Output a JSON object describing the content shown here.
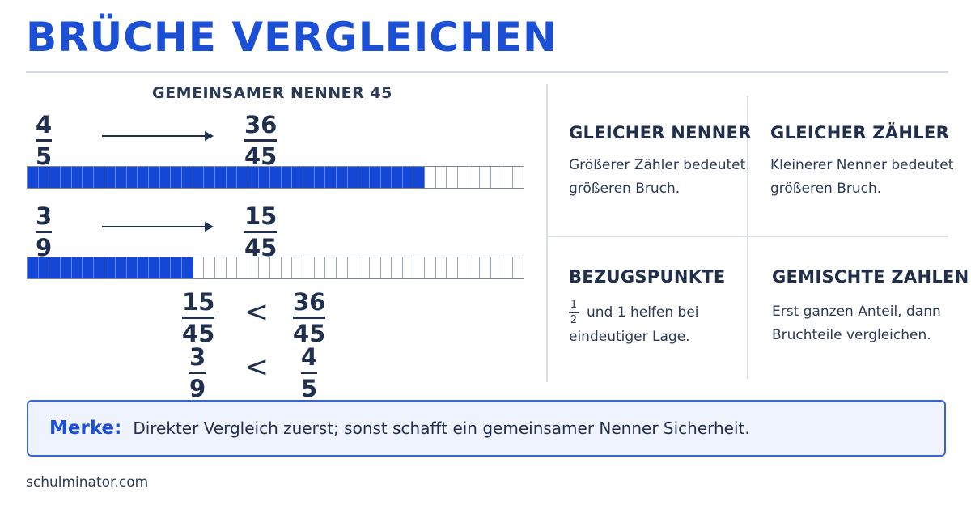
{
  "title": "BRÜCHE VERGLEICHEN",
  "common_denominator_heading": "GEMEINSAMER NENNER 45",
  "rows": [
    {
      "original": {
        "num": "4",
        "den": "5"
      },
      "converted": {
        "num": "36",
        "den": "45"
      },
      "filled": 36,
      "total": 45
    },
    {
      "original": {
        "num": "3",
        "den": "9"
      },
      "converted": {
        "num": "15",
        "den": "45"
      },
      "filled": 15,
      "total": 45
    }
  ],
  "comparisons": [
    {
      "left": {
        "num": "15",
        "den": "45"
      },
      "symbol": "<",
      "right": {
        "num": "36",
        "den": "45"
      }
    },
    {
      "left": {
        "num": "3",
        "den": "9"
      },
      "symbol": "<",
      "right": {
        "num": "4",
        "den": "5"
      }
    }
  ],
  "cards": {
    "same_denominator": {
      "title": "GLEICHER NENNER",
      "line1": "Größerer Zähler bedeutet",
      "line2": "größeren Bruch."
    },
    "same_numerator": {
      "title": "GLEICHER ZÄHLER",
      "line1": "Kleinerer Nenner bedeutet",
      "line2": "größeren Bruch."
    },
    "benchmarks": {
      "title": "BEZUGSPUNKTE",
      "half_num": "1",
      "half_den": "2",
      "line1": "und 1 helfen bei",
      "line2": "eindeutiger Lage."
    },
    "mixed_numbers": {
      "title": "GEMISCHTE ZAHLEN",
      "line1": "Erst ganzen Anteil, dann",
      "line2": "Bruchteile vergleichen."
    }
  },
  "merke": {
    "label": "Merke:",
    "text": "Direkter Vergleich zuerst; sonst schafft ein gemeinsamer Nenner Sicherheit."
  },
  "footer": "schulminator.com",
  "colors": {
    "accent": "#1a4fd6",
    "fill": "#1447d6",
    "text": "#1f2f4d"
  }
}
